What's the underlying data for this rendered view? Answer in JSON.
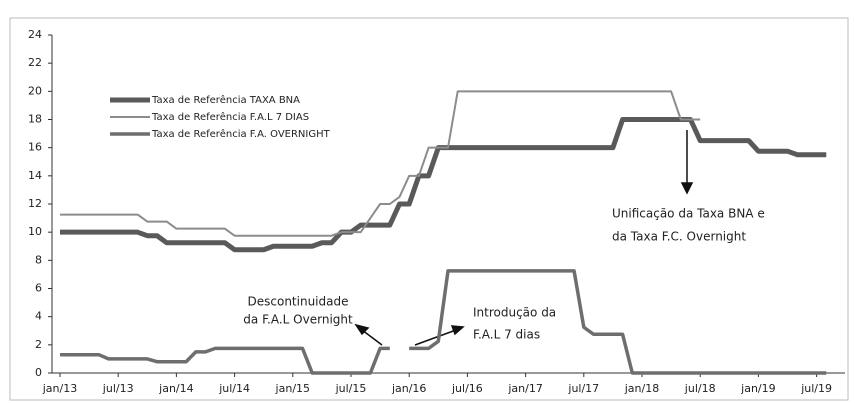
{
  "chart_data": {
    "type": "line",
    "categories": [
      "jan/13",
      null,
      null,
      null,
      null,
      null,
      "jul/13",
      null,
      null,
      null,
      null,
      null,
      "jan/14",
      null,
      null,
      null,
      null,
      null,
      "jul/14",
      null,
      null,
      null,
      null,
      null,
      "jan/15",
      null,
      null,
      null,
      null,
      null,
      "jul/15",
      null,
      null,
      null,
      null,
      null,
      "jan/16",
      null,
      null,
      null,
      null,
      null,
      "jul/16",
      null,
      null,
      null,
      null,
      null,
      "jan/17",
      null,
      null,
      null,
      null,
      null,
      "jul/17",
      null,
      null,
      null,
      null,
      null,
      "jan/18",
      null,
      null,
      null,
      null,
      null,
      "jul/18",
      null,
      null,
      null,
      null,
      null,
      "jan/19",
      null,
      null,
      null,
      null,
      null,
      "jul/19",
      null
    ],
    "series": [
      {
        "name": "Taxa de Referência  TAXA BNA",
        "color": "#5a5a5a",
        "values": [
          10,
          10,
          10,
          10,
          10,
          10,
          10,
          10,
          10,
          9.75,
          9.75,
          9.25,
          9.25,
          9.25,
          9.25,
          9.25,
          9.25,
          9.25,
          8.75,
          8.75,
          8.75,
          8.75,
          9,
          9,
          9,
          9,
          9,
          9.25,
          9.25,
          10,
          10,
          10.5,
          10.5,
          10.5,
          10.5,
          12,
          12,
          14,
          14,
          16,
          16,
          16,
          16,
          16,
          16,
          16,
          16,
          16,
          16,
          16,
          16,
          16,
          16,
          16,
          16,
          16,
          16,
          16,
          18,
          18,
          18,
          18,
          18,
          18,
          18,
          18,
          16.5,
          16.5,
          16.5,
          16.5,
          16.5,
          16.5,
          15.75,
          15.75,
          15.75,
          15.75,
          15.5,
          15.5,
          15.5,
          15.5
        ]
      },
      {
        "name": "Taxa de Referência F.A.L 7 DIAS",
        "color": "#8c8c8c",
        "values": [
          11.25,
          11.25,
          11.25,
          11.25,
          11.25,
          11.25,
          11.25,
          11.25,
          11.25,
          10.75,
          10.75,
          10.75,
          10.25,
          10.25,
          10.25,
          10.25,
          10.25,
          10.25,
          9.75,
          9.75,
          9.75,
          9.75,
          9.75,
          9.75,
          9.75,
          9.75,
          9.75,
          9.75,
          9.75,
          10,
          10,
          10,
          11,
          12,
          12,
          12.5,
          14,
          14,
          16,
          16,
          16,
          20,
          20,
          20,
          20,
          20,
          20,
          20,
          20,
          20,
          20,
          20,
          20,
          20,
          20,
          20,
          20,
          20,
          20,
          20,
          20,
          20,
          20,
          20,
          18,
          18,
          18,
          null,
          null,
          null,
          null,
          null,
          null,
          null,
          null,
          null,
          null,
          null,
          null,
          null
        ]
      },
      {
        "name": "Taxa de Referência F.A. OVERNIGHT",
        "color": "#6e6e6e",
        "values": [
          1.3,
          1.3,
          1.3,
          1.3,
          1.3,
          1,
          1,
          1,
          1,
          1,
          0.8,
          0.8,
          0.8,
          0.8,
          1.5,
          1.5,
          1.75,
          1.75,
          1.75,
          1.75,
          1.75,
          1.75,
          1.75,
          1.75,
          1.75,
          1.75,
          0,
          0,
          0,
          0,
          0,
          0,
          0,
          1.75,
          1.75,
          null,
          1.75,
          1.75,
          1.75,
          2.25,
          7.25,
          7.25,
          7.25,
          7.25,
          7.25,
          7.25,
          7.25,
          7.25,
          7.25,
          7.25,
          7.25,
          7.25,
          7.25,
          7.25,
          3.25,
          2.75,
          2.75,
          2.75,
          2.75,
          0,
          0,
          0,
          0,
          0,
          0,
          0,
          0,
          0,
          0,
          0,
          0,
          0,
          0,
          0,
          0,
          0,
          0,
          0,
          0,
          0
        ]
      }
    ],
    "ylim": [
      0,
      24
    ],
    "yticks": [
      0,
      2,
      4,
      6,
      8,
      10,
      12,
      14,
      16,
      18,
      20,
      22,
      24
    ],
    "annotations": [
      "Descontinuidade",
      "da F.A.L Overnight",
      "Introdução da",
      "F.A.L 7 dias",
      "Unificação da Taxa BNA e",
      "da Taxa F.C. Overnight"
    ]
  }
}
